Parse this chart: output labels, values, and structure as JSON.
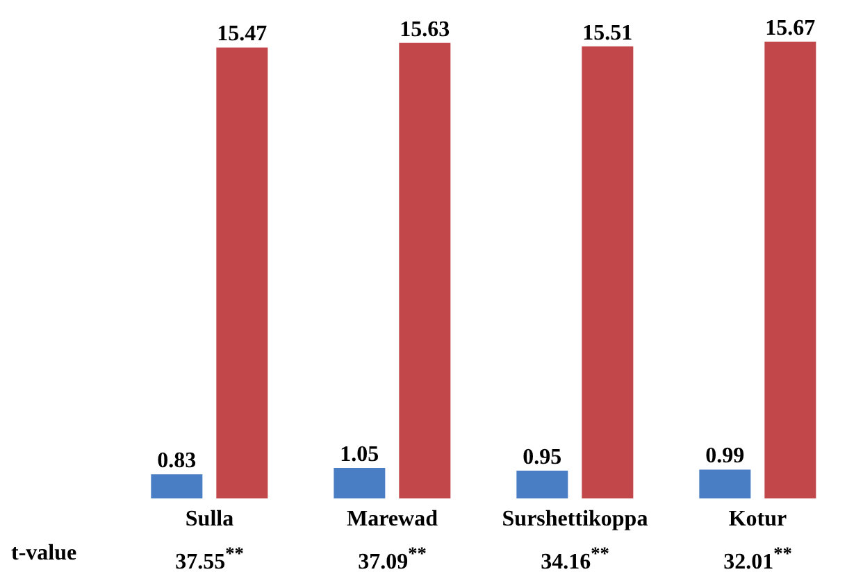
{
  "chart_data": {
    "type": "bar",
    "categories": [
      "Sulla",
      "Marewad",
      "Surshettikoppa",
      "Kotur"
    ],
    "series": [
      {
        "color": "#4a7ec4",
        "values": [
          0.83,
          1.05,
          0.95,
          0.99
        ]
      },
      {
        "color": "#c2474a",
        "values": [
          15.47,
          15.63,
          15.51,
          15.67
        ]
      }
    ],
    "data_labels": true,
    "grid": false,
    "legend": false,
    "annotations": [
      "t-value",
      "37.55$^{**}$",
      "37.09$^{**}$",
      "34.16$^{**}$",
      "32.01$^{**}$"
    ]
  }
}
